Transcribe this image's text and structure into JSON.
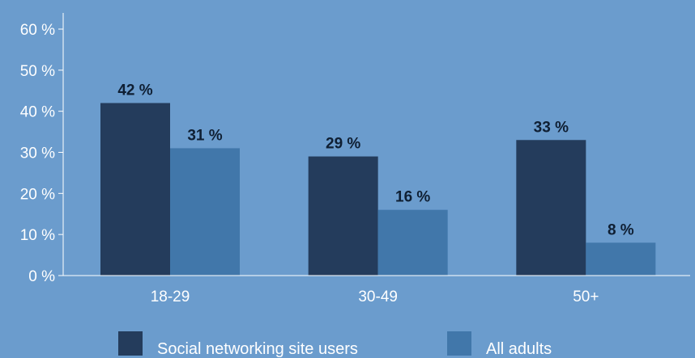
{
  "chart_data": {
    "type": "bar",
    "categories": [
      "18-29",
      "30-49",
      "50+"
    ],
    "series": [
      {
        "name": "Social networking site users",
        "values": [
          42,
          29,
          33
        ],
        "color": "#243c5c"
      },
      {
        "name": "All adults",
        "values": [
          31,
          16,
          8
        ],
        "color": "#4177aa"
      }
    ],
    "data_labels": [
      [
        "42 %",
        "29 %",
        "33 %"
      ],
      [
        "31 %",
        "16 %",
        "8 %"
      ]
    ],
    "yticks": [
      0,
      10,
      20,
      30,
      40,
      50,
      60
    ],
    "ytick_labels": [
      "0 %",
      "10 %",
      "20 %",
      "30 %",
      "40 %",
      "50 %",
      "60 %"
    ],
    "ylim": [
      0,
      60
    ],
    "grid": false,
    "legend": "bottom",
    "title": "",
    "xlabel": "",
    "ylabel": ""
  }
}
